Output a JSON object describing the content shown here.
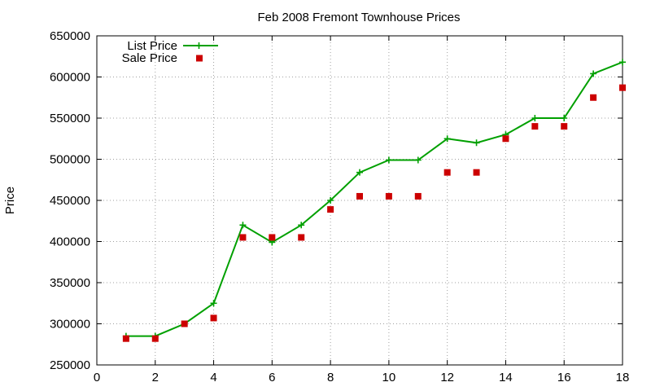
{
  "chart_data": {
    "type": "line",
    "title": "Feb 2008 Fremont Townhouse Prices",
    "xlabel": "",
    "ylabel": "Price",
    "xlim": [
      0,
      18
    ],
    "ylim": [
      250000,
      650000
    ],
    "x_ticks": [
      0,
      2,
      4,
      6,
      8,
      10,
      12,
      14,
      16,
      18
    ],
    "y_ticks": [
      250000,
      300000,
      350000,
      400000,
      450000,
      500000,
      550000,
      600000,
      650000
    ],
    "grid": true,
    "legend_position": "top-left",
    "series": [
      {
        "name": "List Price",
        "style": "line-with-plus",
        "color": "#00a000",
        "x": [
          1,
          2,
          3,
          4,
          5,
          6,
          7,
          8,
          9,
          10,
          11,
          12,
          13,
          14,
          15,
          16,
          17,
          18
        ],
        "values": [
          285000,
          285000,
          300000,
          325000,
          420000,
          399000,
          420000,
          450000,
          484000,
          499000,
          499000,
          525000,
          520000,
          530000,
          550000,
          550000,
          604000,
          618000
        ]
      },
      {
        "name": "Sale Price",
        "style": "square-points",
        "color": "#cc0000",
        "x": [
          1,
          2,
          3,
          4,
          5,
          6,
          7,
          8,
          9,
          10,
          11,
          12,
          13,
          14,
          15,
          16,
          17,
          18
        ],
        "values": [
          282000,
          282000,
          300000,
          307000,
          405000,
          405000,
          405000,
          439000,
          455000,
          455000,
          455000,
          484000,
          484000,
          525000,
          540000,
          540000,
          575000,
          587000
        ]
      }
    ]
  }
}
